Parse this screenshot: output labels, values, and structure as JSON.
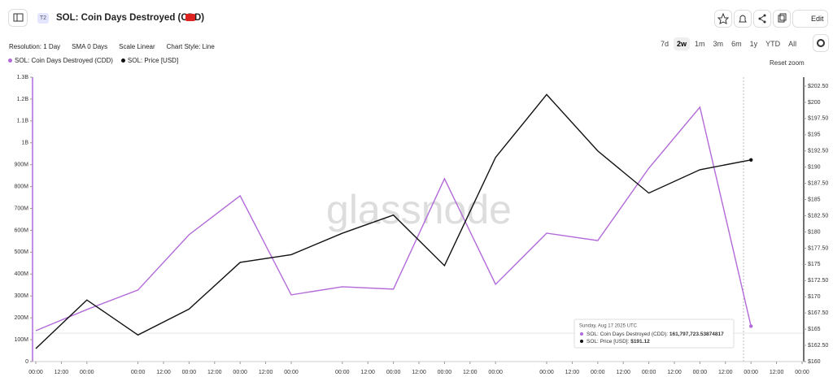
{
  "header": {
    "badge": "T2",
    "title": "SOL: Coin Days Destroyed (CDD)",
    "edit": "Edit"
  },
  "toolbar": {
    "items": [
      "Resolution: 1 Day",
      "SMA 0 Days",
      "Scale Linear",
      "Chart Style: Line"
    ],
    "ranges": [
      "7d",
      "2w",
      "1m",
      "3m",
      "6m",
      "1y",
      "YTD",
      "All"
    ],
    "selected_range": "2w",
    "reset": "Reset zoom"
  },
  "chart_data": {
    "type": "line",
    "watermark": "glassnode",
    "x": [
      0,
      1,
      2,
      3,
      4,
      5,
      6,
      7,
      8,
      9,
      10,
      11,
      12,
      13,
      14
    ],
    "xlim": [
      0,
      15
    ],
    "xticks": [
      {
        "value": 0,
        "label": "00:00"
      },
      {
        "value": 0.5,
        "label": "12:00"
      },
      {
        "value": 1,
        "label": "00:00"
      },
      {
        "value": 2,
        "label": "00:00"
      },
      {
        "value": 2.5,
        "label": "12:00"
      },
      {
        "value": 3,
        "label": "00:00"
      },
      {
        "value": 3.5,
        "label": "12:00"
      },
      {
        "value": 4,
        "label": "00:00"
      },
      {
        "value": 4.5,
        "label": "12:00"
      },
      {
        "value": 5,
        "label": "00:00"
      },
      {
        "value": 6,
        "label": "00:00"
      },
      {
        "value": 6.5,
        "label": "12:00"
      },
      {
        "value": 7,
        "label": "00:00"
      },
      {
        "value": 7.5,
        "label": "12:00"
      },
      {
        "value": 8,
        "label": "00:00"
      },
      {
        "value": 8.5,
        "label": "12:00"
      },
      {
        "value": 9,
        "label": "00:00"
      },
      {
        "value": 10,
        "label": "00:00"
      },
      {
        "value": 10.5,
        "label": "12:00"
      },
      {
        "value": 11,
        "label": "00:00"
      },
      {
        "value": 11.5,
        "label": "12:00"
      },
      {
        "value": 12,
        "label": "00:00"
      },
      {
        "value": 12.5,
        "label": "12:00"
      },
      {
        "value": 13,
        "label": "00:00"
      },
      {
        "value": 13.5,
        "label": "12:00"
      },
      {
        "value": 14,
        "label": "00:00"
      },
      {
        "value": 14.5,
        "label": "12:00"
      },
      {
        "value": 15,
        "label": "00:00"
      }
    ],
    "ylim": [
      0,
      1300000000
    ],
    "yticks": [
      {
        "value": 0,
        "label": "0"
      },
      {
        "value": 100000000,
        "label": "100M"
      },
      {
        "value": 200000000,
        "label": "200M"
      },
      {
        "value": 300000000,
        "label": "300M"
      },
      {
        "value": 400000000,
        "label": "400M"
      },
      {
        "value": 500000000,
        "label": "500M"
      },
      {
        "value": 600000000,
        "label": "600M"
      },
      {
        "value": 700000000,
        "label": "700M"
      },
      {
        "value": 800000000,
        "label": "800M"
      },
      {
        "value": 900000000,
        "label": "900M"
      },
      {
        "value": 1000000000,
        "label": "1B"
      },
      {
        "value": 1100000000,
        "label": "1.1B"
      },
      {
        "value": 1200000000,
        "label": "1.2B"
      },
      {
        "value": 1300000000,
        "label": "1.3B"
      }
    ],
    "y2lim": [
      160,
      202.5
    ],
    "y2ticks": [
      {
        "value": 160,
        "label": "$160"
      },
      {
        "value": 162.5,
        "label": "$162.50"
      },
      {
        "value": 165,
        "label": "$165"
      },
      {
        "value": 167.5,
        "label": "$167.50"
      },
      {
        "value": 170,
        "label": "$170"
      },
      {
        "value": 172.5,
        "label": "$172.50"
      },
      {
        "value": 175,
        "label": "$175"
      },
      {
        "value": 177.5,
        "label": "$177.50"
      },
      {
        "value": 180,
        "label": "$180"
      },
      {
        "value": 182.5,
        "label": "$182.50"
      },
      {
        "value": 185,
        "label": "$185"
      },
      {
        "value": 187.5,
        "label": "$187.50"
      },
      {
        "value": 190,
        "label": "$190"
      },
      {
        "value": 192.5,
        "label": "$192.50"
      },
      {
        "value": 195,
        "label": "$195"
      },
      {
        "value": 197.5,
        "label": "$197.50"
      },
      {
        "value": 200,
        "label": "$200"
      },
      {
        "value": 202.5,
        "label": "$202.50"
      }
    ],
    "series": [
      {
        "name": "SOL: Coin Days Destroyed (CDD)",
        "color": "#b36ad9",
        "values": [
          141000000,
          238000000,
          327000000,
          580000000,
          758000000,
          305000000,
          342000000,
          331000000,
          836000000,
          353000000,
          587000000,
          553000000,
          884000000,
          1163000000,
          161797723.53874817
        ]
      },
      {
        "name": "SOL: Price [USD]",
        "color": "#111111",
        "axis": "y2",
        "values": [
          162.0,
          169.5,
          164.1,
          168.1,
          175.3,
          176.5,
          179.8,
          182.6,
          174.8,
          191.5,
          201.2,
          192.5,
          186.0,
          189.6,
          191.12
        ]
      }
    ],
    "tooltip": {
      "date": "Sunday, Aug 17 2025 UTC",
      "labels": [
        "161,797,723.53874817",
        "$191.12"
      ]
    }
  }
}
